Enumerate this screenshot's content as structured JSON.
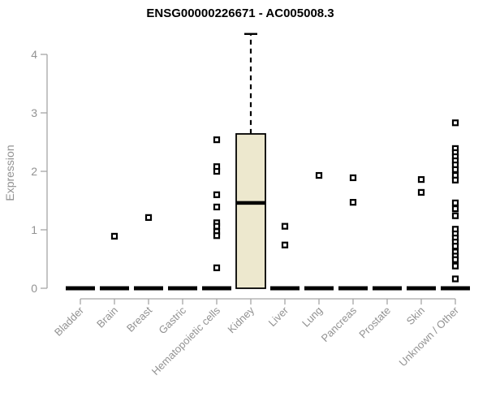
{
  "chart_data": {
    "type": "boxplot",
    "title": "ENSG00000226671 - AC005008.3",
    "ylabel": "Expression",
    "xlabel": "",
    "yticks": [
      0,
      1,
      2,
      3,
      4
    ],
    "ylim": [
      0,
      4.4
    ],
    "grid": false,
    "legend_position": "none",
    "categories": [
      "Bladder",
      "Brain",
      "Breast",
      "Gastric",
      "Hematopoietic cells",
      "Kidney",
      "Liver",
      "Lung",
      "Pancreas",
      "Prostate",
      "Skin",
      "Unknown / Other"
    ],
    "series": [
      {
        "category": "Bladder",
        "q1": 0,
        "median": 0,
        "q3": 0,
        "whisker_low": 0,
        "whisker_high": 0,
        "outliers": []
      },
      {
        "category": "Brain",
        "q1": 0,
        "median": 0,
        "q3": 0,
        "whisker_low": 0,
        "whisker_high": 0,
        "outliers": [
          0.89
        ]
      },
      {
        "category": "Breast",
        "q1": 0,
        "median": 0,
        "q3": 0,
        "whisker_low": 0,
        "whisker_high": 0,
        "outliers": [
          1.21
        ]
      },
      {
        "category": "Gastric",
        "q1": 0,
        "median": 0,
        "q3": 0,
        "whisker_low": 0,
        "whisker_high": 0,
        "outliers": []
      },
      {
        "category": "Hematopoietic cells",
        "q1": 0,
        "median": 0,
        "q3": 0,
        "whisker_low": 0,
        "whisker_high": 0,
        "outliers": [
          2.54,
          2.08,
          2.0,
          1.6,
          1.39,
          1.12,
          1.06,
          0.97,
          0.9,
          0.35
        ]
      },
      {
        "category": "Kidney",
        "q1": 0,
        "median": 1.46,
        "q3": 2.64,
        "whisker_low": 0,
        "whisker_high": 4.35,
        "outliers": []
      },
      {
        "category": "Liver",
        "q1": 0,
        "median": 0,
        "q3": 0,
        "whisker_low": 0,
        "whisker_high": 0,
        "outliers": [
          1.06,
          0.74
        ]
      },
      {
        "category": "Lung",
        "q1": 0,
        "median": 0,
        "q3": 0,
        "whisker_low": 0,
        "whisker_high": 0,
        "outliers": [
          1.93
        ]
      },
      {
        "category": "Pancreas",
        "q1": 0,
        "median": 0,
        "q3": 0,
        "whisker_low": 0,
        "whisker_high": 0,
        "outliers": [
          1.89,
          1.47
        ]
      },
      {
        "category": "Prostate",
        "q1": 0,
        "median": 0,
        "q3": 0,
        "whisker_low": 0,
        "whisker_high": 0,
        "outliers": []
      },
      {
        "category": "Skin",
        "q1": 0,
        "median": 0,
        "q3": 0,
        "whisker_low": 0,
        "whisker_high": 0,
        "outliers": [
          1.86,
          1.64
        ]
      },
      {
        "category": "Unknown / Other",
        "q1": 0,
        "median": 0,
        "q3": 0,
        "whisker_low": 0,
        "whisker_high": 0,
        "outliers": [
          2.83,
          2.39,
          2.32,
          2.25,
          2.18,
          2.11,
          2.03,
          1.93,
          1.85,
          1.46,
          1.36,
          1.24,
          1.01,
          0.93,
          0.86,
          0.79,
          0.72,
          0.62,
          0.55,
          0.49,
          0.38,
          0.16
        ]
      }
    ],
    "colors": {
      "box_fill": "#EDE8CE",
      "box_stroke": "#000000",
      "median": "#000000",
      "outlier_stroke": "#000000",
      "outlier_fill": "#FFFFFF",
      "axis_line": "#A6A6A6",
      "tick_text": "#929292",
      "title_text": "#000000",
      "background": "#FFFFFF"
    }
  }
}
